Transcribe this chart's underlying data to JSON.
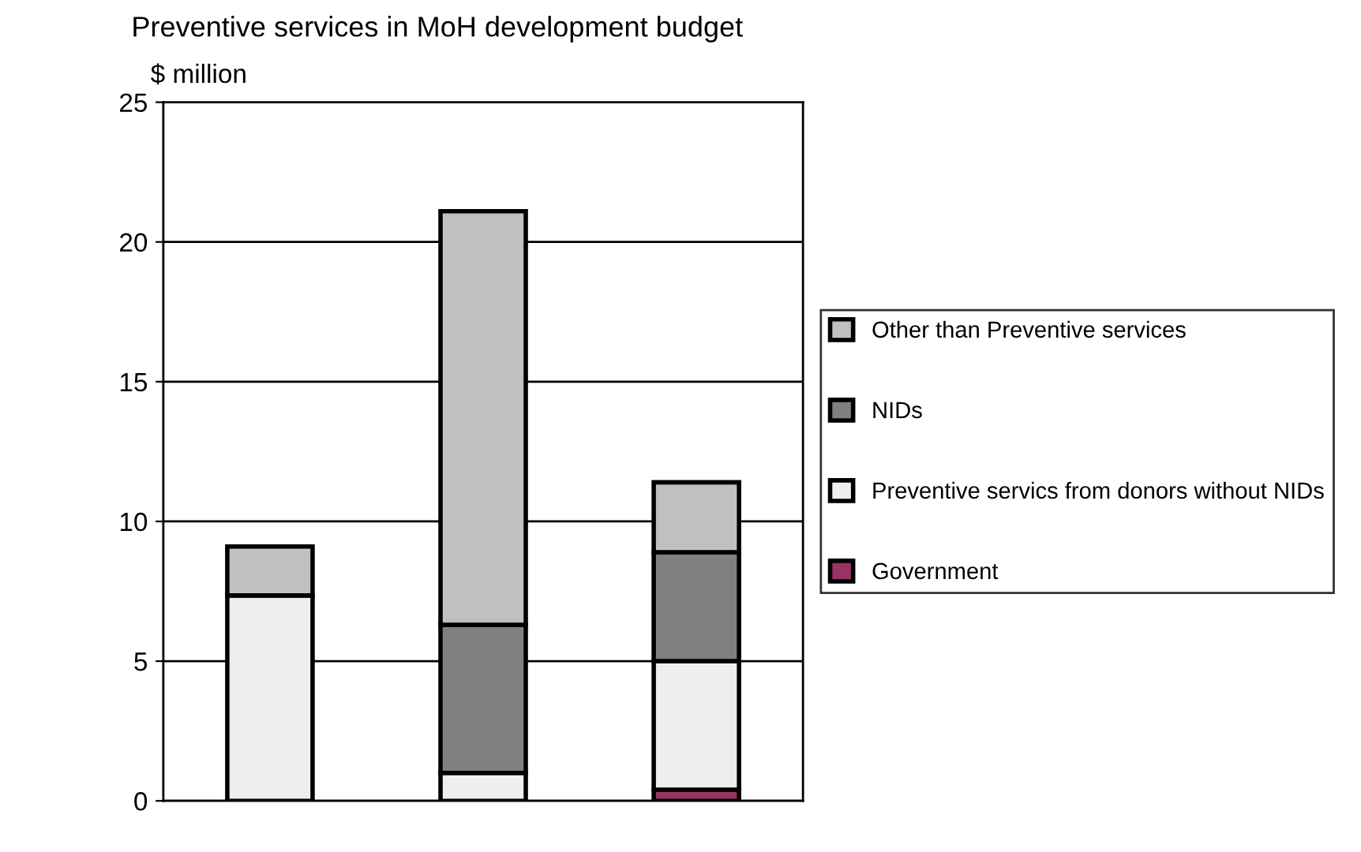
{
  "chart_data": {
    "type": "bar",
    "title": "Preventive services in MoH development budget",
    "ylabel": "$ million",
    "categories": [
      null,
      null,
      null
    ],
    "stacked": true,
    "series": [
      {
        "name": "Government",
        "color": "#993366",
        "values": [
          null,
          null,
          0.4
        ]
      },
      {
        "name": "Preventive servics from donors without NIDs",
        "color": "#eeeeee",
        "values": [
          7.35,
          1.0,
          4.6
        ]
      },
      {
        "name": "NIDs",
        "color": "#808080",
        "values": [
          0,
          5.3,
          3.9
        ]
      },
      {
        "name": "Other than Preventive services",
        "color": "#c0c0c0",
        "values": [
          1.75,
          14.8,
          2.5
        ]
      }
    ],
    "ylim": [
      0,
      25
    ],
    "yticks": [
      0,
      5,
      10,
      15,
      20,
      25
    ],
    "grid": "y",
    "legend": "right"
  }
}
